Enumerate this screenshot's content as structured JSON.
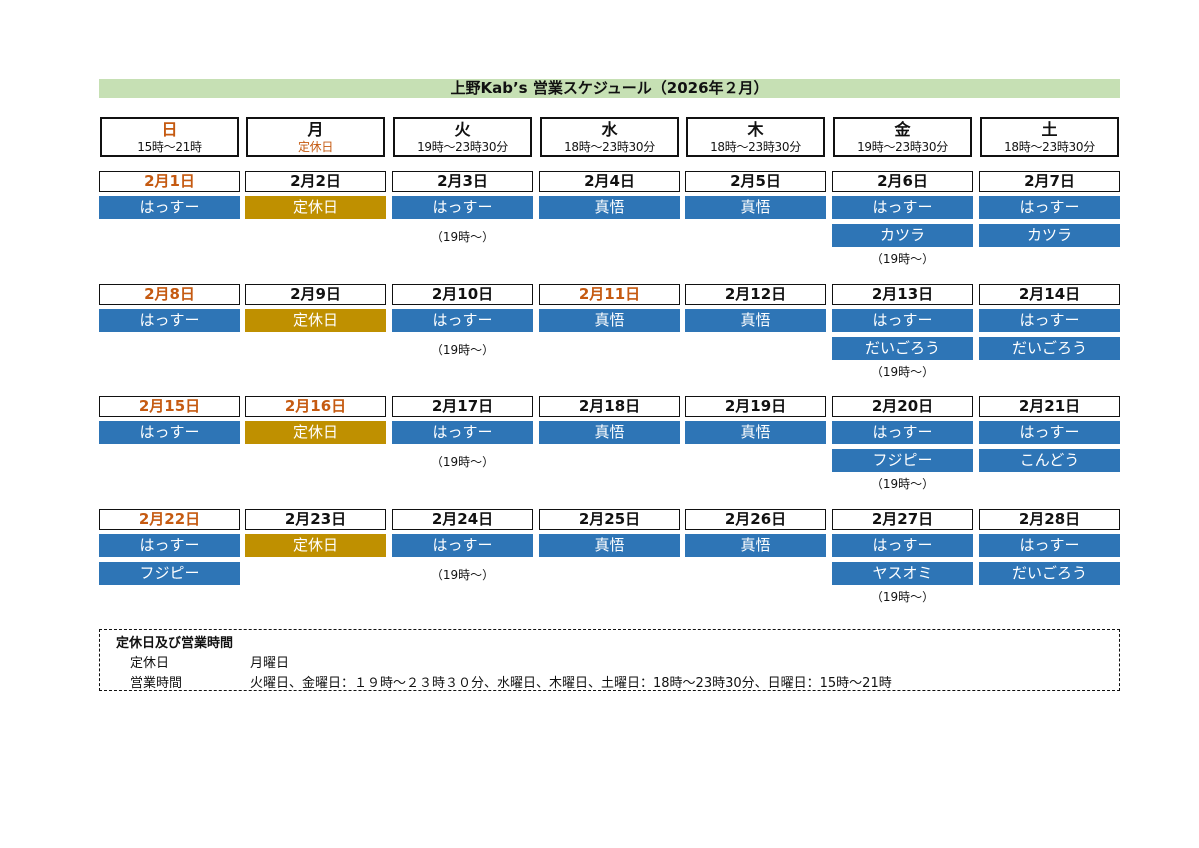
{
  "title": "上野Kab’s 営業スケジュール（2026年２月）",
  "headers": [
    {
      "day": "日",
      "hours": "15時～21時",
      "day_red": true,
      "hours_red": false
    },
    {
      "day": "月",
      "hours": "定休日",
      "day_red": false,
      "hours_red": true
    },
    {
      "day": "火",
      "hours": "19時～23時30分",
      "day_red": false,
      "hours_red": false
    },
    {
      "day": "水",
      "hours": "18時～23時30分",
      "day_red": false,
      "hours_red": false
    },
    {
      "day": "木",
      "hours": "18時～23時30分",
      "day_red": false,
      "hours_red": false
    },
    {
      "day": "金",
      "hours": "19時～23時30分",
      "day_red": false,
      "hours_red": false
    },
    {
      "day": "土",
      "hours": "18時～23時30分",
      "day_red": false,
      "hours_red": false
    }
  ],
  "weeks": [
    {
      "days": [
        {
          "date": "2月1日",
          "red": true,
          "slots": [
            {
              "text": "はっすー"
            }
          ]
        },
        {
          "date": "2月2日",
          "red": false,
          "slots": [
            {
              "text": "定休日",
              "closed": true
            }
          ]
        },
        {
          "date": "2月3日",
          "red": false,
          "slots": [
            {
              "text": "はっすー"
            }
          ],
          "note": "（19時～）"
        },
        {
          "date": "2月4日",
          "red": false,
          "slots": [
            {
              "text": "真悟"
            }
          ]
        },
        {
          "date": "2月5日",
          "red": false,
          "slots": [
            {
              "text": "真悟"
            }
          ]
        },
        {
          "date": "2月6日",
          "red": false,
          "slots": [
            {
              "text": "はっすー"
            },
            {
              "text": "カツラ"
            }
          ],
          "note": "（19時～）"
        },
        {
          "date": "2月7日",
          "red": false,
          "slots": [
            {
              "text": "はっすー"
            },
            {
              "text": "カツラ"
            }
          ]
        }
      ]
    },
    {
      "days": [
        {
          "date": "2月8日",
          "red": true,
          "slots": [
            {
              "text": "はっすー"
            }
          ]
        },
        {
          "date": "2月9日",
          "red": false,
          "slots": [
            {
              "text": "定休日",
              "closed": true
            }
          ]
        },
        {
          "date": "2月10日",
          "red": false,
          "slots": [
            {
              "text": "はっすー"
            }
          ],
          "note": "（19時～）"
        },
        {
          "date": "2月11日",
          "red": true,
          "slots": [
            {
              "text": "真悟"
            }
          ]
        },
        {
          "date": "2月12日",
          "red": false,
          "slots": [
            {
              "text": "真悟"
            }
          ]
        },
        {
          "date": "2月13日",
          "red": false,
          "slots": [
            {
              "text": "はっすー"
            },
            {
              "text": "だいごろう"
            }
          ],
          "note": "（19時～）"
        },
        {
          "date": "2月14日",
          "red": false,
          "slots": [
            {
              "text": "はっすー"
            },
            {
              "text": "だいごろう"
            }
          ]
        }
      ]
    },
    {
      "days": [
        {
          "date": "2月15日",
          "red": true,
          "slots": [
            {
              "text": "はっすー"
            }
          ]
        },
        {
          "date": "2月16日",
          "red": true,
          "slots": [
            {
              "text": "定休日",
              "closed": true
            }
          ]
        },
        {
          "date": "2月17日",
          "red": false,
          "slots": [
            {
              "text": "はっすー"
            }
          ],
          "note": "（19時～）"
        },
        {
          "date": "2月18日",
          "red": false,
          "slots": [
            {
              "text": "真悟"
            }
          ]
        },
        {
          "date": "2月19日",
          "red": false,
          "slots": [
            {
              "text": "真悟"
            }
          ]
        },
        {
          "date": "2月20日",
          "red": false,
          "slots": [
            {
              "text": "はっすー"
            },
            {
              "text": "フジピー"
            }
          ],
          "note": "（19時～）"
        },
        {
          "date": "2月21日",
          "red": false,
          "slots": [
            {
              "text": "はっすー"
            },
            {
              "text": "こんどう"
            }
          ]
        }
      ]
    },
    {
      "days": [
        {
          "date": "2月22日",
          "red": true,
          "slots": [
            {
              "text": "はっすー"
            },
            {
              "text": "フジピー"
            }
          ]
        },
        {
          "date": "2月23日",
          "red": false,
          "slots": [
            {
              "text": "定休日",
              "closed": true
            }
          ]
        },
        {
          "date": "2月24日",
          "red": false,
          "slots": [
            {
              "text": "はっすー"
            }
          ],
          "note": "（19時～）"
        },
        {
          "date": "2月25日",
          "red": false,
          "slots": [
            {
              "text": "真悟"
            }
          ]
        },
        {
          "date": "2月26日",
          "red": false,
          "slots": [
            {
              "text": "真悟"
            }
          ]
        },
        {
          "date": "2月27日",
          "red": false,
          "slots": [
            {
              "text": "はっすー"
            },
            {
              "text": "ヤスオミ"
            }
          ],
          "note": "（19時～）"
        },
        {
          "date": "2月28日",
          "red": false,
          "slots": [
            {
              "text": "はっすー"
            },
            {
              "text": "だいごろう"
            }
          ]
        }
      ]
    }
  ],
  "legend": {
    "title": "定休日及び営業時間",
    "rows": [
      {
        "label": "定休日",
        "value": "月曜日"
      },
      {
        "label": "営業時間",
        "value": "火曜日、金曜日：１９時～２３時３０分、水曜日、木曜日、土曜日：18時～23時30分、日曜日：15時～21時"
      }
    ]
  },
  "colors": {
    "title_bg": "#c6e0b4",
    "slot_bg": "#2e75b6",
    "closed_bg": "#bf9000",
    "holiday_text": "#c55a11"
  }
}
